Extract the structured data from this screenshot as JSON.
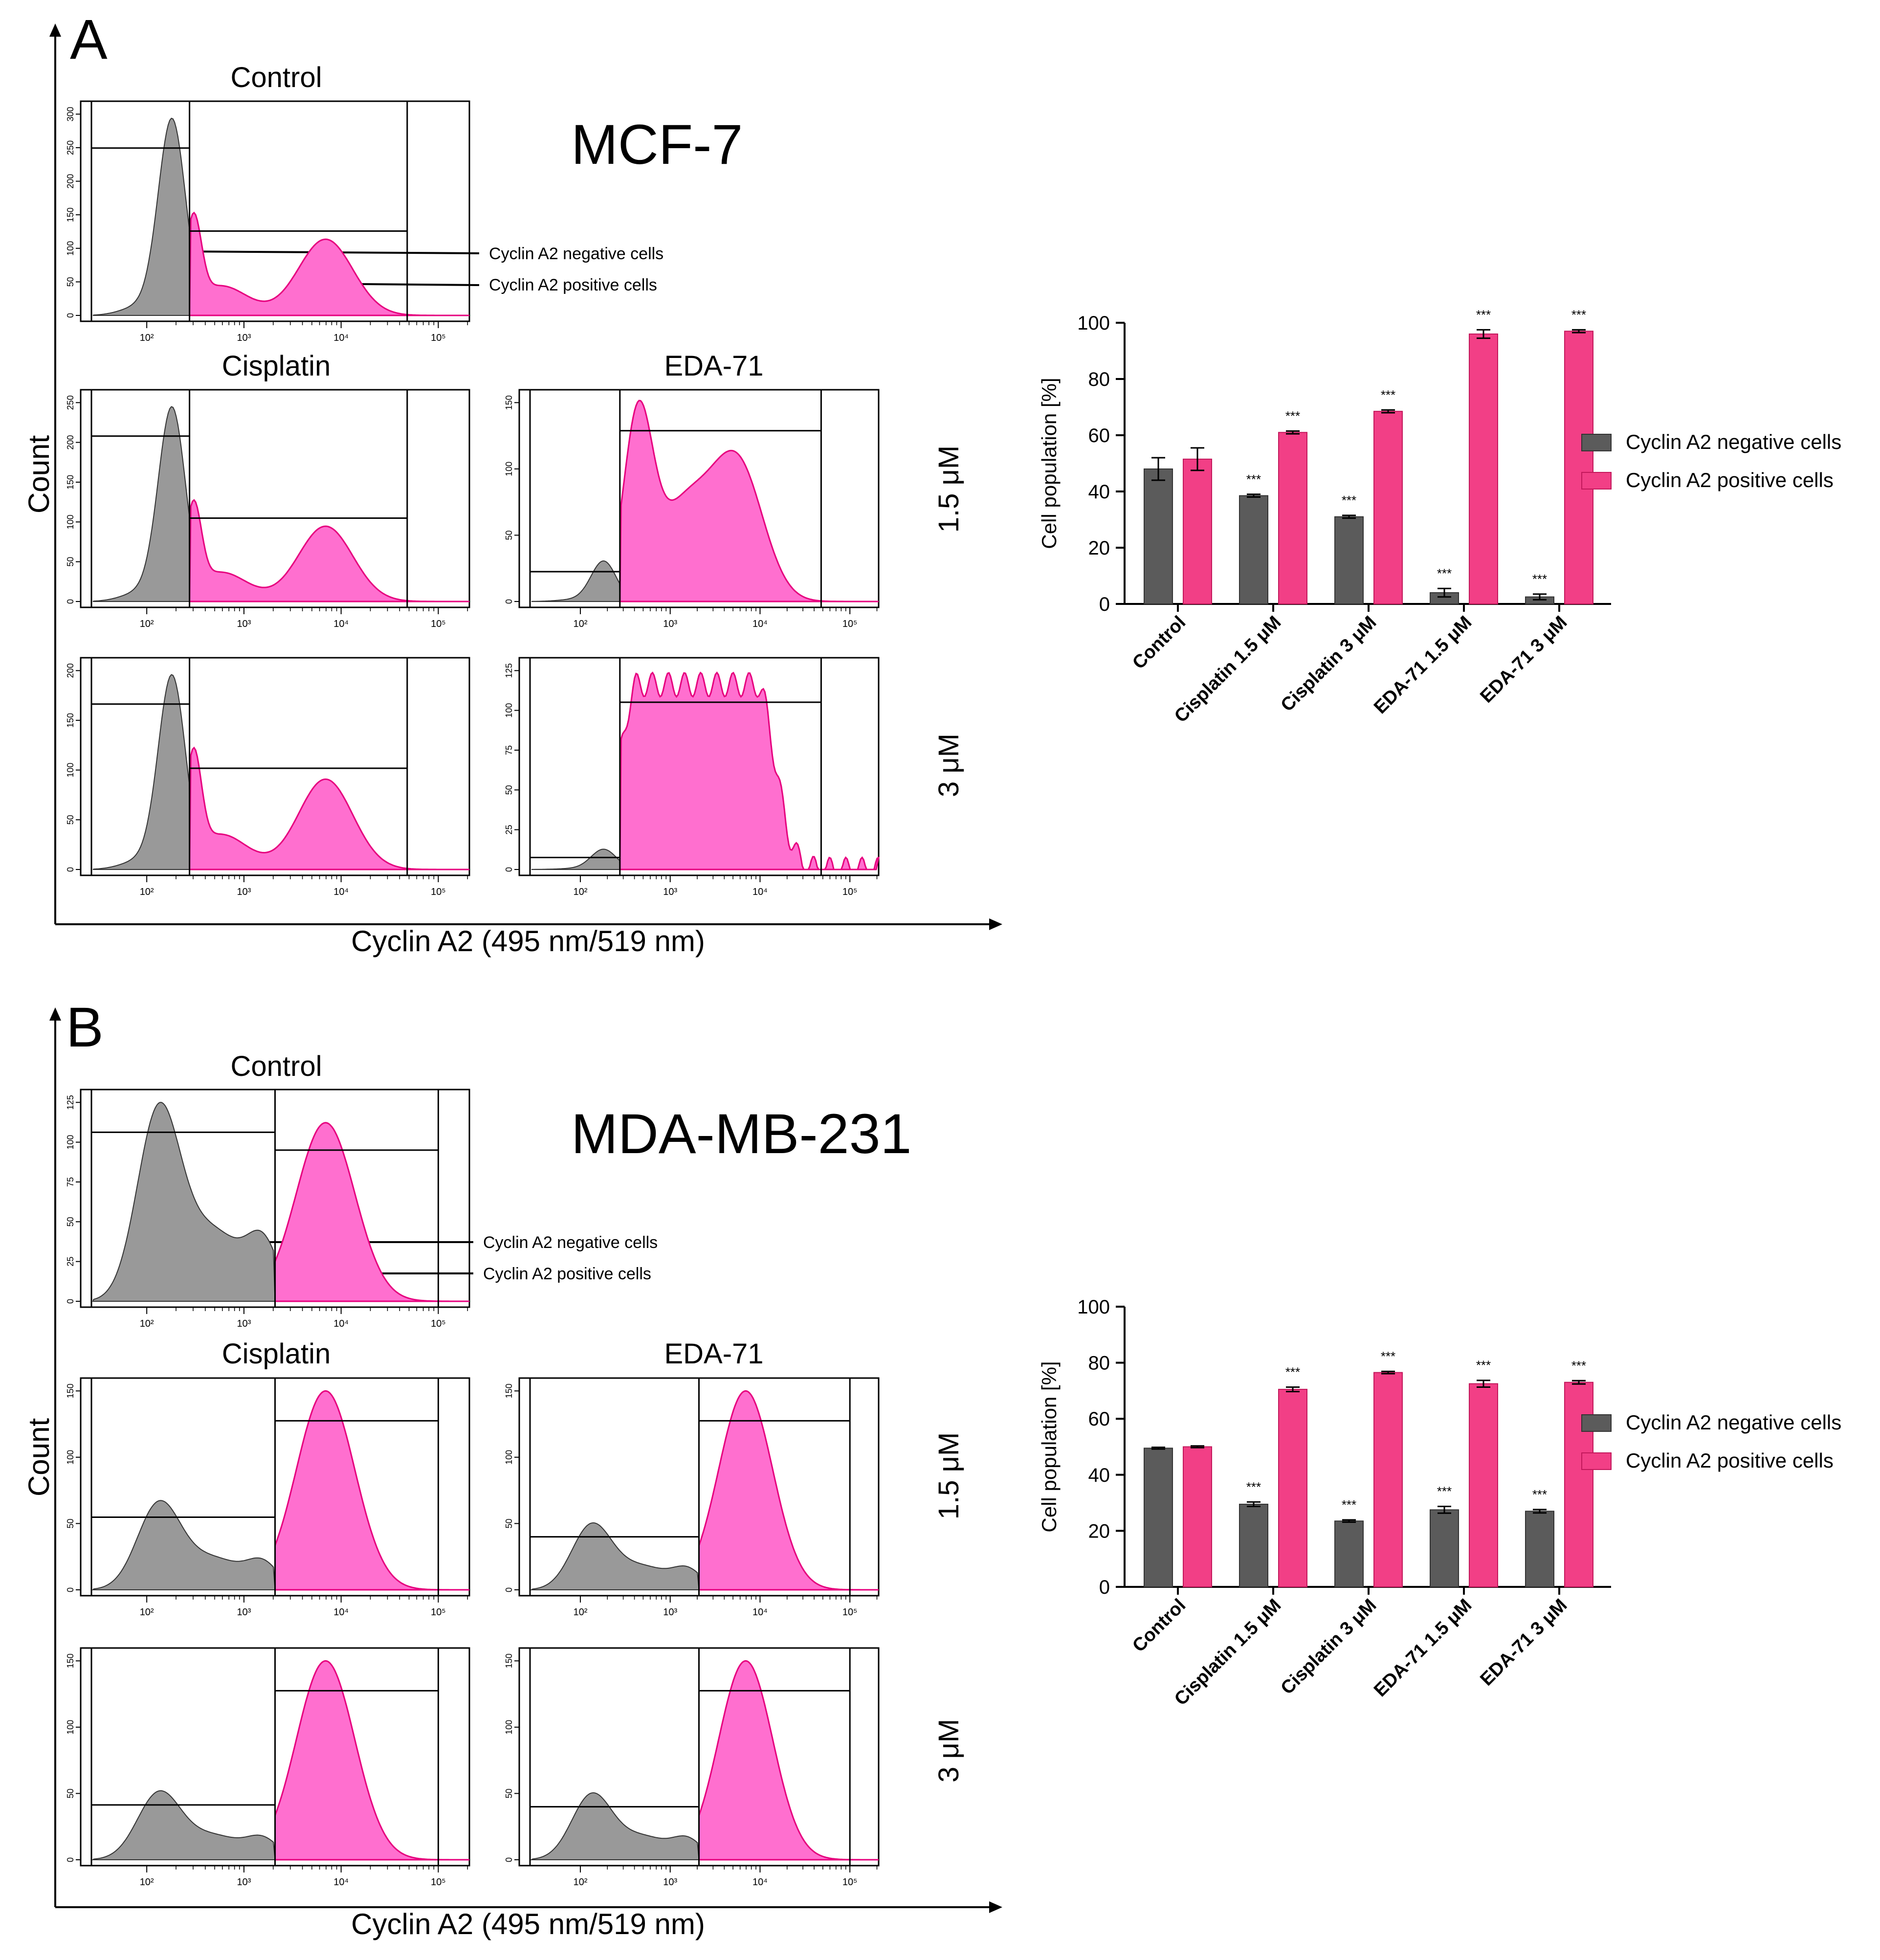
{
  "colors": {
    "negative": "#5b5b5b",
    "positive": "#f23f86",
    "histNegFill": "#999999",
    "histPosFill": "#ff6fcf",
    "histPosStroke": "#e6007e",
    "axis": "#000000"
  },
  "panels": [
    {
      "letter": "A",
      "cell_line": "MCF-7",
      "x_axis_label": "Cyclin A2 (495 nm/519 nm)",
      "y_axis_label": "Count",
      "col_titles": {
        "control": "Control",
        "cisplatin": "Cisplatin",
        "eda": "EDA-71"
      },
      "row_labels": {
        "low": "1.5 μM",
        "high": "3 μM"
      },
      "arrow_labels": {
        "negative": "Cyclin A2 negative cells",
        "positive": "Cyclin A2 positive cells"
      },
      "histograms": [
        {
          "key": "control",
          "gate": 0.28,
          "peakNeg": 0.96,
          "peakPos": 0.5,
          "ymax": 300,
          "yticks": [
            0,
            50,
            100,
            150,
            200,
            250,
            300
          ],
          "yticks_text": [
            "0",
            "50",
            "100",
            "150",
            "200",
            "250",
            "300"
          ]
        },
        {
          "key": "cisplatin_low",
          "gate": 0.28,
          "peakNeg": 0.96,
          "peakPos": 0.5,
          "ymax": 250,
          "yticks": [
            0,
            50,
            100,
            150,
            200,
            250
          ],
          "yticks_text": [
            "0",
            "50",
            "100",
            "150",
            "200",
            "250"
          ]
        },
        {
          "key": "eda_low",
          "gate": 0.28,
          "peakNeg": 0.2,
          "peakPos": 0.99,
          "ymax": 150,
          "yticks": [
            0,
            50,
            100,
            150
          ],
          "yticks_text": [
            "0",
            "50",
            "100",
            "150"
          ]
        },
        {
          "key": "cisplatin_high",
          "gate": 0.28,
          "peakNeg": 0.96,
          "peakPos": 0.6,
          "ymax": 200,
          "yticks": [
            0,
            50,
            100,
            150,
            200
          ],
          "yticks_text": [
            "0",
            "50",
            "100",
            "150",
            "200"
          ]
        },
        {
          "key": "eda_high",
          "gate": 0.28,
          "peakNeg": 0.1,
          "peakPos": 0.97,
          "ymax": 125,
          "yticks": [
            0,
            25,
            50,
            75,
            100,
            125
          ],
          "yticks_text": [
            "0",
            "25",
            "50",
            "75",
            "100",
            "125"
          ]
        }
      ],
      "x_tick_labels": [
        "10²",
        "10³",
        "10⁴",
        "10⁵"
      ],
      "chart_data": {
        "type": "bar",
        "title": "",
        "xlabel": "",
        "ylabel": "Cell population [%]",
        "ylim": [
          0,
          100
        ],
        "yticks": [
          0,
          20,
          40,
          60,
          80,
          100
        ],
        "yticks_text": [
          "0",
          "20",
          "40",
          "60",
          "80",
          "100"
        ],
        "categories": [
          "Control",
          "Cisplatin 1.5 μM",
          "Cisplatin 3 μM",
          "EDA-71 1.5 μM",
          "EDA-71 3 μM"
        ],
        "series": [
          {
            "name": "Cyclin A2 negative cells",
            "values": [
              48,
              38.5,
              31,
              4,
              2.5
            ],
            "errors": [
              4,
              0.5,
              0.5,
              1.5,
              1
            ],
            "sig": [
              "",
              "***",
              "***",
              "***",
              "***"
            ]
          },
          {
            "name": "Cyclin A2 positive cells",
            "values": [
              51.5,
              61,
              68.5,
              96,
              97
            ],
            "errors": [
              4,
              0.5,
              0.5,
              1.5,
              0.5
            ],
            "sig": [
              "",
              "***",
              "***",
              "***",
              "***"
            ]
          }
        ],
        "legend": "right"
      }
    },
    {
      "letter": "B",
      "cell_line": "MDA-MB-231",
      "x_axis_label": "Cyclin A2 (495 nm/519 nm)",
      "y_axis_label": "Count",
      "col_titles": {
        "control": "Control",
        "cisplatin": "Cisplatin",
        "eda": "EDA-71"
      },
      "row_labels": {
        "low": "1.5 μM",
        "high": "3 μM"
      },
      "arrow_labels": {
        "negative": "Cyclin A2 negative cells",
        "positive": "Cyclin A2 positive cells"
      },
      "histograms": [
        {
          "key": "control",
          "gate": 0.5,
          "peakNeg": 0.98,
          "peakPos": 0.88,
          "ymax": 125,
          "yticks": [
            0,
            25,
            50,
            75,
            100,
            125
          ],
          "yticks_text": [
            "0",
            "25",
            "50",
            "75",
            "100",
            "125"
          ]
        },
        {
          "key": "cisplatin_low",
          "gate": 0.5,
          "peakNeg": 0.44,
          "peakPos": 0.98,
          "ymax": 150,
          "yticks": [
            0,
            50,
            100,
            150
          ],
          "yticks_text": [
            "0",
            "50",
            "100",
            "150"
          ]
        },
        {
          "key": "eda_low",
          "gate": 0.5,
          "peakNeg": 0.33,
          "peakPos": 0.98,
          "ymax": 150,
          "yticks": [
            0,
            50,
            100,
            150
          ],
          "yticks_text": [
            "0",
            "50",
            "100",
            "150"
          ]
        },
        {
          "key": "cisplatin_high",
          "gate": 0.5,
          "peakNeg": 0.34,
          "peakPos": 0.98,
          "ymax": 150,
          "yticks": [
            0,
            50,
            100,
            150
          ],
          "yticks_text": [
            "0",
            "50",
            "100",
            "150"
          ]
        },
        {
          "key": "eda_high",
          "gate": 0.5,
          "peakNeg": 0.33,
          "peakPos": 0.98,
          "ymax": 150,
          "yticks": [
            0,
            50,
            100,
            150
          ],
          "yticks_text": [
            "0",
            "50",
            "100",
            "150"
          ]
        }
      ],
      "x_tick_labels": [
        "10²",
        "10³",
        "10⁴",
        "10⁵"
      ],
      "chart_data": {
        "type": "bar",
        "title": "",
        "xlabel": "",
        "ylabel": "Cell population [%]",
        "ylim": [
          0,
          100
        ],
        "yticks": [
          0,
          20,
          40,
          60,
          80,
          100
        ],
        "yticks_text": [
          "0",
          "20",
          "40",
          "60",
          "80",
          "100"
        ],
        "categories": [
          "Control",
          "Cisplatin 1.5 μM",
          "Cisplatin 3 μM",
          "EDA-71 1.5 μM",
          "EDA-71 3 μM"
        ],
        "series": [
          {
            "name": "Cyclin A2 negative cells",
            "values": [
              49.5,
              29.5,
              23.5,
              27.5,
              27
            ],
            "errors": [
              0.3,
              0.8,
              0.4,
              1.2,
              0.6
            ],
            "sig": [
              "",
              "***",
              "***",
              "***",
              "***"
            ]
          },
          {
            "name": "Cyclin A2 positive cells",
            "values": [
              50,
              70.5,
              76.5,
              72.5,
              73
            ],
            "errors": [
              0.3,
              0.8,
              0.4,
              1.2,
              0.6
            ],
            "sig": [
              "",
              "***",
              "***",
              "***",
              "***"
            ]
          }
        ],
        "legend": "right"
      }
    }
  ]
}
